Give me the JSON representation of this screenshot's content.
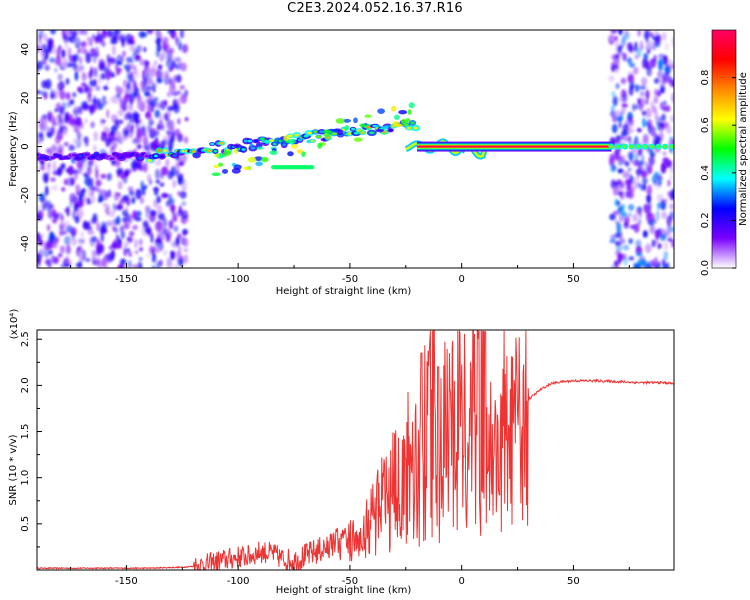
{
  "page": {
    "title": "C2E3.2024.052.16.37.R16"
  },
  "chart_data": [
    {
      "type": "heatmap",
      "title": "C2E3.2024.052.16.37.R16",
      "xlabel": "Height of straight line (km)",
      "ylabel": "Frequency (Hz)",
      "xlim": [
        -190,
        95
      ],
      "ylim": [
        -50,
        48
      ],
      "xticks": [
        -150,
        -100,
        -50,
        0,
        50
      ],
      "yticks": [
        -40,
        -20,
        0,
        20,
        40
      ],
      "grid": false,
      "colorbar": {
        "label": "Normalized spectral amplitude",
        "range": [
          0.0,
          1.0
        ],
        "ticks": [
          "0.0",
          "0.2",
          "0.4",
          "0.6",
          "0.8"
        ],
        "colormap": [
          "#ffffff",
          "#7a00ff",
          "#0000ff",
          "#00ffff",
          "#00ff00",
          "#ffff00",
          "#ff8800",
          "#ff0000",
          "#ff0066"
        ]
      },
      "regions": [
        {
          "name": "noise",
          "x_range": [
            -190,
            -123
          ],
          "level": 0.25
        },
        {
          "name": "ridge",
          "x_range": [
            -150,
            -20
          ],
          "freq_start": -5,
          "freq_end": 8,
          "level": 0.6
        },
        {
          "name": "carrier",
          "x_range": [
            -20,
            67
          ],
          "freq": 0,
          "level": 1.0
        },
        {
          "name": "noise",
          "x_range": [
            67,
            95
          ],
          "level": 0.3
        }
      ]
    },
    {
      "type": "line",
      "xlabel": "Height of straight line (km)",
      "ylabel": "SNR (10 * v/v)",
      "yunit_label": "(x10⁴)",
      "xlim": [
        -190,
        95
      ],
      "ylim": [
        0,
        2.6
      ],
      "xticks": [
        -150,
        -100,
        -50,
        0,
        50
      ],
      "yticks": [
        0.5,
        1.0,
        1.5,
        2.0,
        2.5
      ],
      "ytick_labels": [
        "0.5",
        "1.0",
        "1.5",
        "2.0",
        "2.5"
      ],
      "grid": false,
      "color": "#ee3333",
      "series": [
        {
          "x": [
            -190,
            -160,
            -140,
            -125,
            -115,
            -108,
            -100,
            -95,
            -90,
            -85,
            -80,
            -75,
            -70,
            -65,
            -60,
            -55,
            -50,
            -45,
            -40,
            -35,
            -30,
            -25,
            -20,
            -15,
            -12,
            -10,
            -5,
            0,
            5,
            8,
            10,
            11,
            15,
            20,
            25,
            30,
            35,
            40,
            45,
            50,
            60,
            70,
            80,
            90,
            95
          ],
          "y": [
            0.02,
            0.02,
            0.02,
            0.03,
            0.05,
            0.1,
            0.14,
            0.15,
            0.2,
            0.18,
            0.12,
            0.1,
            0.15,
            0.2,
            0.25,
            0.35,
            0.45,
            0.55,
            0.7,
            0.85,
            0.95,
            1.1,
            1.25,
            1.3,
            1.7,
            1.2,
            1.35,
            1.45,
            1.55,
            1.5,
            2.55,
            1.6,
            1.45,
            1.65,
            1.75,
            1.85,
            1.95,
            2.02,
            2.04,
            2.05,
            2.05,
            2.04,
            2.03,
            2.03,
            2.02
          ]
        }
      ]
    }
  ]
}
